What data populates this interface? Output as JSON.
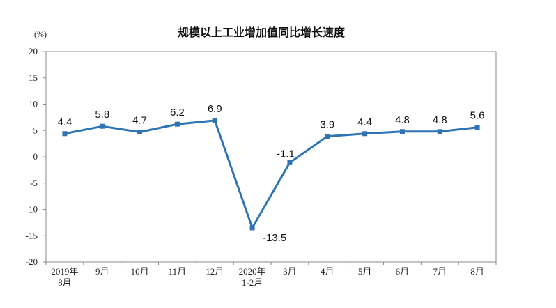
{
  "chart_data": {
    "type": "line",
    "title": "规模以上工业增加值同比增长速度",
    "ylabel": "(%)",
    "xlabel": "",
    "ylim": [
      -20,
      20
    ],
    "yticks": [
      20,
      15,
      10,
      5,
      0,
      -5,
      -10,
      -15,
      -20
    ],
    "categories": [
      [
        "2019年",
        "8月"
      ],
      [
        "9月"
      ],
      [
        "10月"
      ],
      [
        "11月"
      ],
      [
        "12月"
      ],
      [
        "2020年",
        "1-2月"
      ],
      [
        "3月"
      ],
      [
        "4月"
      ],
      [
        "5月"
      ],
      [
        "6月"
      ],
      [
        "7月"
      ],
      [
        "8月"
      ]
    ],
    "values": [
      4.4,
      5.8,
      4.7,
      6.2,
      6.9,
      -13.5,
      -1.1,
      3.9,
      4.4,
      4.8,
      4.8,
      5.6
    ],
    "data_labels": [
      "4.4",
      "5.8",
      "4.7",
      "6.2",
      "6.9",
      "-13.5",
      "-1.1",
      "3.9",
      "4.4",
      "4.8",
      "4.8",
      "5.6"
    ],
    "line_color": "#2e74b5",
    "grid": false,
    "legend": "none"
  }
}
